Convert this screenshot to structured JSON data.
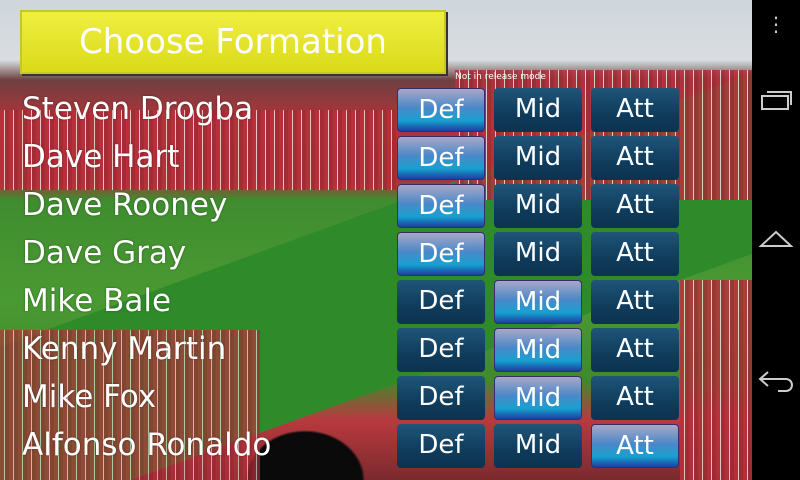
{
  "title_button": "Choose Formation",
  "debug_text": "Not in release mode",
  "position_labels": [
    "Def",
    "Mid",
    "Att"
  ],
  "players": [
    {
      "name": "Steven Drogba",
      "selected": "Def"
    },
    {
      "name": "Dave Hart",
      "selected": "Def"
    },
    {
      "name": "Dave Rooney",
      "selected": "Def"
    },
    {
      "name": "Dave Gray",
      "selected": "Def"
    },
    {
      "name": "Mike Bale",
      "selected": "Mid"
    },
    {
      "name": "Kenny Martin",
      "selected": "Mid"
    },
    {
      "name": "Mike Fox",
      "selected": "Mid"
    },
    {
      "name": "Alfonso Ronaldo",
      "selected": "Att"
    }
  ],
  "nav": {
    "icons": [
      "overflow-menu-icon",
      "recent-apps-icon",
      "home-icon",
      "back-icon"
    ]
  },
  "colors": {
    "title": "#e4e22a",
    "button": "#123f60",
    "selected": "#1a8fd0"
  }
}
